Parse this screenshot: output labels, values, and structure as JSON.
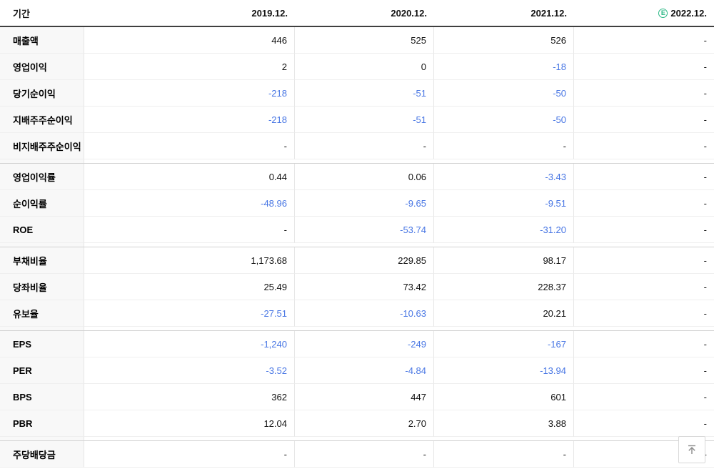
{
  "table": {
    "period_header": "기간",
    "columns": [
      "2019.12.",
      "2020.12.",
      "2021.12.",
      "2022.12."
    ],
    "estimate_column_index": 3,
    "estimate_badge": "E",
    "groups": [
      {
        "name": "profit-loss",
        "rows": [
          {
            "label": "매출액",
            "values": [
              "446",
              "525",
              "526",
              "-"
            ]
          },
          {
            "label": "영업이익",
            "values": [
              "2",
              "0",
              "-18",
              "-"
            ]
          },
          {
            "label": "당기순이익",
            "values": [
              "-218",
              "-51",
              "-50",
              "-"
            ]
          },
          {
            "label": "지배주주순이익",
            "values": [
              "-218",
              "-51",
              "-50",
              "-"
            ]
          },
          {
            "label": "비지배주주순이익",
            "values": [
              "-",
              "-",
              "-",
              "-"
            ]
          }
        ]
      },
      {
        "name": "margins",
        "rows": [
          {
            "label": "영업이익률",
            "values": [
              "0.44",
              "0.06",
              "-3.43",
              "-"
            ]
          },
          {
            "label": "순이익률",
            "values": [
              "-48.96",
              "-9.65",
              "-9.51",
              "-"
            ]
          },
          {
            "label": "ROE",
            "values": [
              "-",
              "-53.74",
              "-31.20",
              "-"
            ]
          }
        ]
      },
      {
        "name": "stability-ratios",
        "rows": [
          {
            "label": "부채비율",
            "values": [
              "1,173.68",
              "229.85",
              "98.17",
              "-"
            ]
          },
          {
            "label": "당좌비율",
            "values": [
              "25.49",
              "73.42",
              "228.37",
              "-"
            ]
          },
          {
            "label": "유보율",
            "values": [
              "-27.51",
              "-10.63",
              "20.21",
              "-"
            ]
          }
        ]
      },
      {
        "name": "per-share",
        "rows": [
          {
            "label": "EPS",
            "values": [
              "-1,240",
              "-249",
              "-167",
              "-"
            ]
          },
          {
            "label": "PER",
            "values": [
              "-3.52",
              "-4.84",
              "-13.94",
              "-"
            ]
          },
          {
            "label": "BPS",
            "values": [
              "362",
              "447",
              "601",
              "-"
            ]
          },
          {
            "label": "PBR",
            "values": [
              "12.04",
              "2.70",
              "3.88",
              "-"
            ]
          }
        ]
      },
      {
        "name": "dividend",
        "rows": [
          {
            "label": "주당배당금",
            "values": [
              "-",
              "-",
              "-",
              "-"
            ]
          }
        ]
      }
    ]
  },
  "colors": {
    "negative_value": "#4876e4",
    "estimate_green": "#2ab784",
    "header_border": "#3f3f3f",
    "label_column_bg": "#f8f8f8"
  },
  "scroll_top_button": {
    "icon": "scroll-to-top"
  }
}
